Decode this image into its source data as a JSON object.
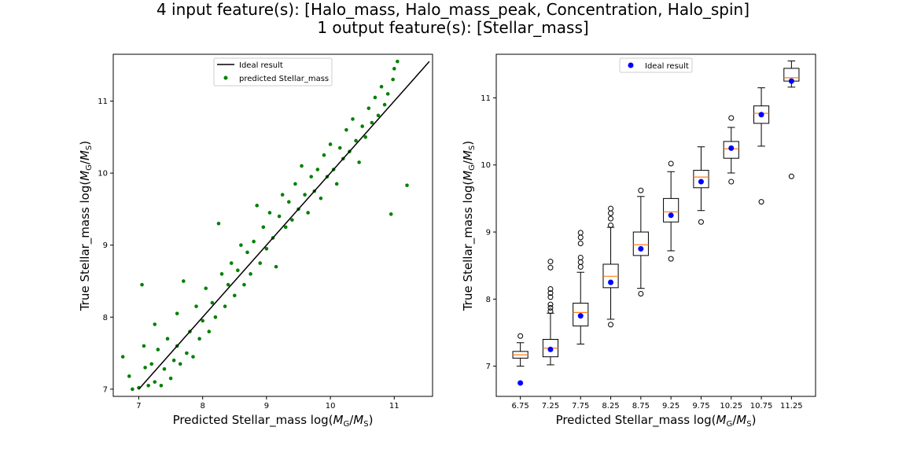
{
  "title_lines": [
    "4 input feature(s): [Halo_mass, Halo_mass_peak, Concentration, Halo_spin]",
    "1 output feature(s): [Stellar_mass]"
  ],
  "colors": {
    "scatter": "#008000",
    "ideal_line": "#000000",
    "ideal_point": "#0000ff",
    "median": "#ff7f0e",
    "box": "#000000"
  },
  "chart_data": [
    {
      "type": "scatter",
      "xlabel_prefix": "Predicted Stellar_mass log(",
      "ylabel_prefix": "True Stellar_mass log(",
      "label_math": "M_G/M_S",
      "xlim": [
        6.6,
        11.6
      ],
      "ylim": [
        6.9,
        11.65
      ],
      "xticks": [
        7,
        8,
        9,
        10,
        11
      ],
      "yticks": [
        7,
        8,
        9,
        10,
        11
      ],
      "legend": {
        "placement": "upper center",
        "entries": [
          {
            "label": "Ideal result",
            "marker": "line"
          },
          {
            "label": "predicted Stellar_mass",
            "marker": "dot"
          }
        ]
      },
      "ideal_line": {
        "x": [
          7.0,
          11.55
        ],
        "y": [
          7.0,
          11.55
        ]
      },
      "points": [
        [
          6.75,
          7.45
        ],
        [
          6.85,
          7.18
        ],
        [
          6.9,
          7.0
        ],
        [
          7.0,
          7.02
        ],
        [
          7.05,
          8.45
        ],
        [
          7.08,
          7.6
        ],
        [
          7.1,
          7.3
        ],
        [
          7.15,
          7.05
        ],
        [
          7.2,
          7.35
        ],
        [
          7.25,
          7.9
        ],
        [
          7.25,
          7.1
        ],
        [
          7.3,
          7.55
        ],
        [
          7.35,
          7.05
        ],
        [
          7.4,
          7.28
        ],
        [
          7.45,
          7.7
        ],
        [
          7.5,
          7.15
        ],
        [
          7.55,
          7.4
        ],
        [
          7.6,
          8.05
        ],
        [
          7.6,
          7.6
        ],
        [
          7.65,
          7.35
        ],
        [
          7.7,
          8.5
        ],
        [
          7.75,
          7.5
        ],
        [
          7.8,
          7.8
        ],
        [
          7.85,
          7.45
        ],
        [
          7.9,
          8.15
        ],
        [
          7.95,
          7.7
        ],
        [
          8.0,
          7.95
        ],
        [
          8.05,
          8.4
        ],
        [
          8.1,
          7.8
        ],
        [
          8.15,
          8.2
        ],
        [
          8.2,
          8.0
        ],
        [
          8.25,
          9.3
        ],
        [
          8.3,
          8.6
        ],
        [
          8.35,
          8.15
        ],
        [
          8.4,
          8.45
        ],
        [
          8.45,
          8.75
        ],
        [
          8.5,
          8.3
        ],
        [
          8.55,
          8.65
        ],
        [
          8.6,
          9.0
        ],
        [
          8.65,
          8.45
        ],
        [
          8.7,
          8.9
        ],
        [
          8.75,
          8.6
        ],
        [
          8.8,
          9.05
        ],
        [
          8.85,
          9.55
        ],
        [
          8.9,
          8.75
        ],
        [
          8.95,
          9.25
        ],
        [
          9.0,
          8.95
        ],
        [
          9.05,
          9.45
        ],
        [
          9.1,
          9.1
        ],
        [
          9.15,
          8.7
        ],
        [
          9.2,
          9.4
        ],
        [
          9.25,
          9.7
        ],
        [
          9.3,
          9.25
        ],
        [
          9.35,
          9.6
        ],
        [
          9.4,
          9.35
        ],
        [
          9.45,
          9.85
        ],
        [
          9.5,
          9.5
        ],
        [
          9.55,
          10.1
        ],
        [
          9.6,
          9.7
        ],
        [
          9.65,
          9.45
        ],
        [
          9.7,
          9.95
        ],
        [
          9.75,
          9.75
        ],
        [
          9.8,
          10.05
        ],
        [
          9.85,
          9.65
        ],
        [
          9.9,
          10.25
        ],
        [
          9.95,
          9.95
        ],
        [
          10.0,
          10.4
        ],
        [
          10.05,
          10.05
        ],
        [
          10.1,
          9.85
        ],
        [
          10.15,
          10.35
        ],
        [
          10.2,
          10.2
        ],
        [
          10.25,
          10.6
        ],
        [
          10.3,
          10.3
        ],
        [
          10.35,
          10.75
        ],
        [
          10.4,
          10.45
        ],
        [
          10.45,
          10.15
        ],
        [
          10.5,
          10.65
        ],
        [
          10.55,
          10.5
        ],
        [
          10.6,
          10.9
        ],
        [
          10.65,
          10.7
        ],
        [
          10.7,
          11.05
        ],
        [
          10.75,
          10.8
        ],
        [
          10.8,
          11.2
        ],
        [
          10.85,
          10.95
        ],
        [
          10.9,
          11.1
        ],
        [
          10.95,
          9.43
        ],
        [
          10.98,
          11.3
        ],
        [
          11.0,
          11.45
        ],
        [
          11.05,
          11.55
        ],
        [
          11.2,
          9.83
        ]
      ]
    },
    {
      "type": "box",
      "xlabel_prefix": "Predicted Stellar_mass log(",
      "ylabel_prefix": "True Stellar_mass log(",
      "label_math": "M_G/M_S",
      "ylim": [
        6.55,
        11.65
      ],
      "yticks": [
        7,
        8,
        9,
        10,
        11
      ],
      "categories": [
        "6.75",
        "7.25",
        "7.75",
        "8.25",
        "8.75",
        "9.25",
        "9.75",
        "10.25",
        "10.75",
        "11.25"
      ],
      "legend": {
        "placement": "upper center",
        "entries": [
          {
            "label": "Ideal result",
            "marker": "blue-dot"
          }
        ]
      },
      "boxes": [
        {
          "whislo": 7.0,
          "q1": 7.12,
          "med": 7.17,
          "q3": 7.22,
          "whishi": 7.35,
          "fliers": [
            7.45
          ]
        },
        {
          "whislo": 7.02,
          "q1": 7.14,
          "med": 7.27,
          "q3": 7.4,
          "whishi": 7.79,
          "fliers": [
            7.82,
            7.87,
            7.92,
            8.03,
            8.09,
            8.15,
            8.47,
            8.56
          ]
        },
        {
          "whislo": 7.33,
          "q1": 7.6,
          "med": 7.8,
          "q3": 7.94,
          "whishi": 8.4,
          "fliers": [
            8.48,
            8.55,
            8.62,
            8.83,
            8.92,
            8.99
          ]
        },
        {
          "whislo": 7.7,
          "q1": 8.17,
          "med": 8.34,
          "q3": 8.52,
          "whishi": 9.07,
          "fliers": [
            7.62,
            9.1,
            9.2,
            9.28,
            9.35
          ]
        },
        {
          "whislo": 8.16,
          "q1": 8.65,
          "med": 8.81,
          "q3": 9.0,
          "whishi": 9.53,
          "fliers": [
            8.08,
            9.62
          ]
        },
        {
          "whislo": 8.72,
          "q1": 9.15,
          "med": 9.3,
          "q3": 9.5,
          "whishi": 9.9,
          "fliers": [
            8.6,
            10.02
          ]
        },
        {
          "whislo": 9.32,
          "q1": 9.66,
          "med": 9.82,
          "q3": 9.92,
          "whishi": 10.27,
          "fliers": [
            9.15
          ]
        },
        {
          "whislo": 9.88,
          "q1": 10.1,
          "med": 10.24,
          "q3": 10.35,
          "whishi": 10.56,
          "fliers": [
            9.75,
            10.7
          ]
        },
        {
          "whislo": 10.28,
          "q1": 10.62,
          "med": 10.77,
          "q3": 10.88,
          "whishi": 11.15,
          "fliers": [
            9.45
          ]
        },
        {
          "whislo": 11.16,
          "q1": 11.25,
          "med": 11.3,
          "q3": 11.44,
          "whishi": 11.55,
          "fliers": [
            9.83
          ]
        }
      ],
      "ideal_points": [
        6.75,
        7.25,
        7.75,
        8.25,
        8.75,
        9.25,
        9.75,
        10.25,
        10.75,
        11.25
      ]
    }
  ]
}
